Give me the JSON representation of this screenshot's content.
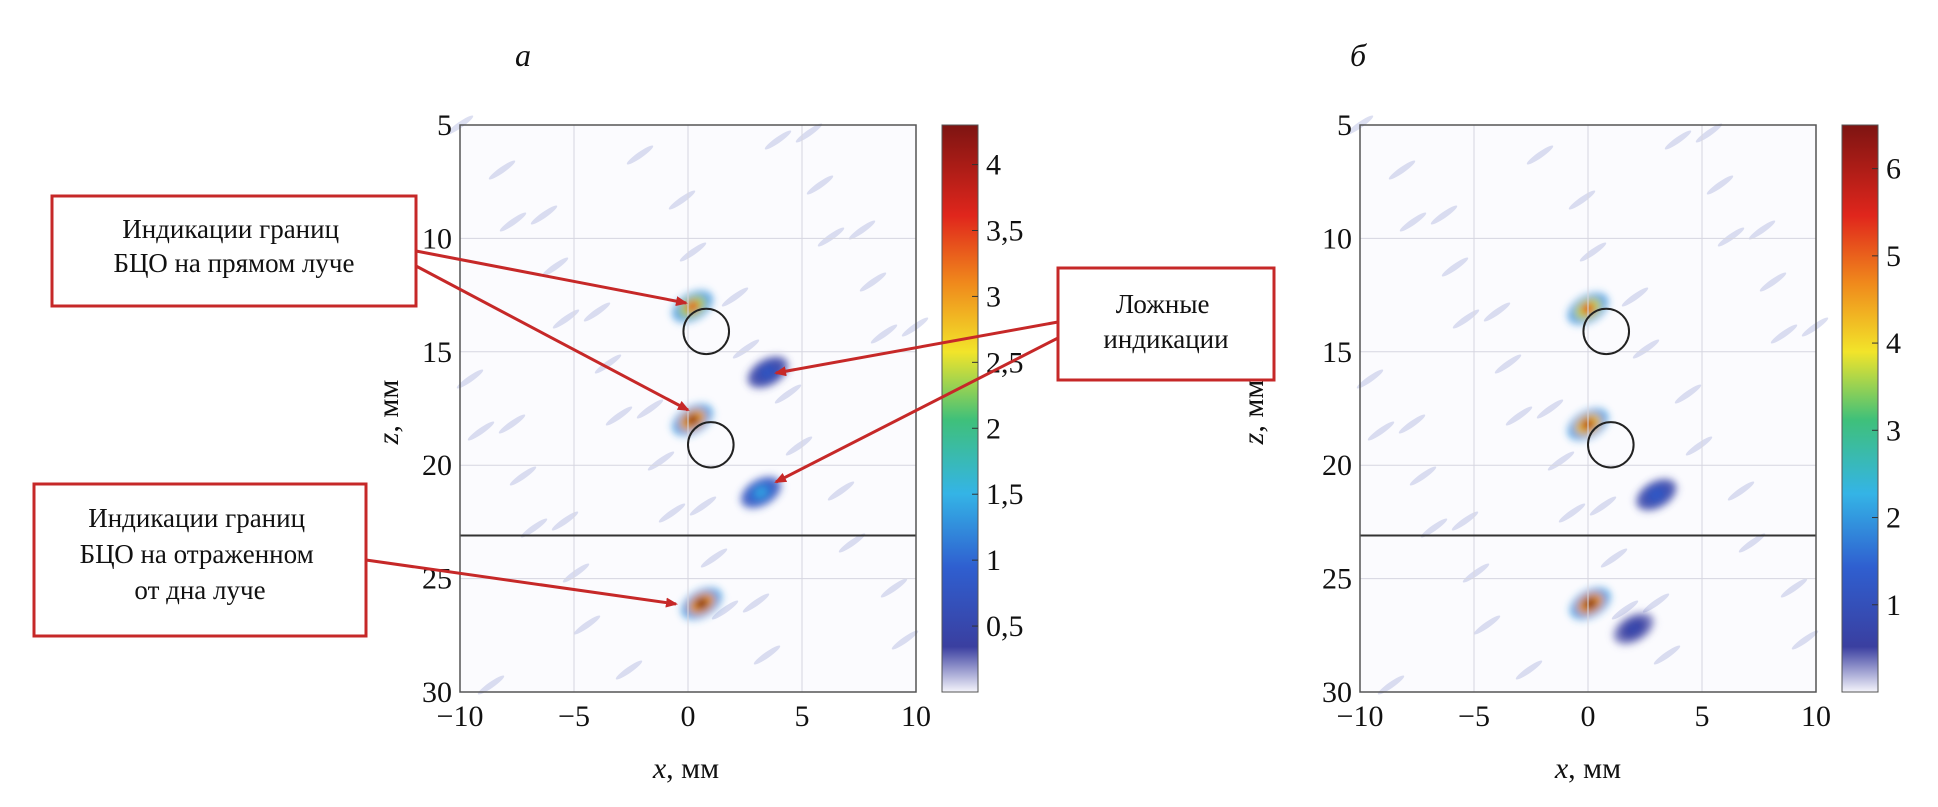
{
  "chart_data": [
    {
      "type": "heatmap",
      "panel_label": "а",
      "xlabel_var": "x",
      "xlabel_unit": ", мм",
      "ylabel_var": "z",
      "ylabel_unit": ", мм",
      "xlim": [
        -10,
        10
      ],
      "ylim": [
        5,
        30
      ],
      "y_inverted": true,
      "xticks": [
        -10,
        -5,
        0,
        5,
        10
      ],
      "yticks": [
        5,
        10,
        15,
        20,
        25,
        30
      ],
      "xtick_labels": [
        "−10",
        "−5",
        "0",
        "5",
        "10"
      ],
      "ytick_labels": [
        "5",
        "10",
        "15",
        "20",
        "25",
        "30"
      ],
      "grid": true,
      "colorscale": "jet",
      "colorbar_range": [
        0,
        4.3
      ],
      "colorbar_ticks": [
        0.5,
        1,
        1.5,
        2,
        2.5,
        3,
        3.5,
        4
      ],
      "colorbar_tick_labels": [
        "0,5",
        "1",
        "1,5",
        "2",
        "2,5",
        "3",
        "3,5",
        "4"
      ],
      "boundary_line_z": 23.1,
      "circles": [
        {
          "x": 0.8,
          "z": 14.1,
          "r": 1.0
        },
        {
          "x": 1.0,
          "z": 19.1,
          "r": 1.0
        }
      ],
      "hotspots": [
        {
          "x": 0.2,
          "z": 13.0,
          "value": 3.4
        },
        {
          "x": 0.2,
          "z": 18.0,
          "value": 4.2
        },
        {
          "x": 3.2,
          "z": 21.2,
          "value": 1.4
        },
        {
          "x": 0.6,
          "z": 26.1,
          "value": 4.3
        },
        {
          "x": 3.5,
          "z": 15.9,
          "value": 0.8
        }
      ]
    },
    {
      "type": "heatmap",
      "panel_label": "б",
      "xlabel_var": "x",
      "xlabel_unit": ", мм",
      "ylabel_var": "z",
      "ylabel_unit": ", мм",
      "xlim": [
        -10,
        10
      ],
      "ylim": [
        5,
        30
      ],
      "y_inverted": true,
      "xticks": [
        -10,
        -5,
        0,
        5,
        10
      ],
      "yticks": [
        5,
        10,
        15,
        20,
        25,
        30
      ],
      "xtick_labels": [
        "−10",
        "−5",
        "0",
        "5",
        "10"
      ],
      "ytick_labels": [
        "5",
        "10",
        "15",
        "20",
        "25",
        "30"
      ],
      "grid": true,
      "colorscale": "jet",
      "colorbar_range": [
        0,
        6.5
      ],
      "colorbar_ticks": [
        1,
        2,
        3,
        4,
        5,
        6
      ],
      "colorbar_tick_labels": [
        "1",
        "2",
        "3",
        "4",
        "5",
        "6"
      ],
      "boundary_line_z": 23.1,
      "circles": [
        {
          "x": 0.8,
          "z": 14.1,
          "r": 1.0
        },
        {
          "x": 1.0,
          "z": 19.1,
          "r": 1.0
        }
      ],
      "hotspots": [
        {
          "x": 0.0,
          "z": 13.1,
          "value": 5.3
        },
        {
          "x": 0.0,
          "z": 18.2,
          "value": 6.0
        },
        {
          "x": 3.0,
          "z": 21.3,
          "value": 1.3
        },
        {
          "x": 0.1,
          "z": 26.1,
          "value": 6.5
        },
        {
          "x": 2.0,
          "z": 27.2,
          "value": 0.8
        }
      ]
    }
  ],
  "callouts": {
    "direct": [
      "Индикации границ",
      "БЦО на прямом луче"
    ],
    "false": [
      "Ложные",
      "индикации"
    ],
    "reflected": [
      "Индикации границ",
      "БЦО на отраженном",
      "от дна луче"
    ]
  },
  "colors": {
    "callout_border": "#c62828",
    "arrow": "#c62828",
    "boundary_line": "#333333",
    "circle": "#222222"
  }
}
